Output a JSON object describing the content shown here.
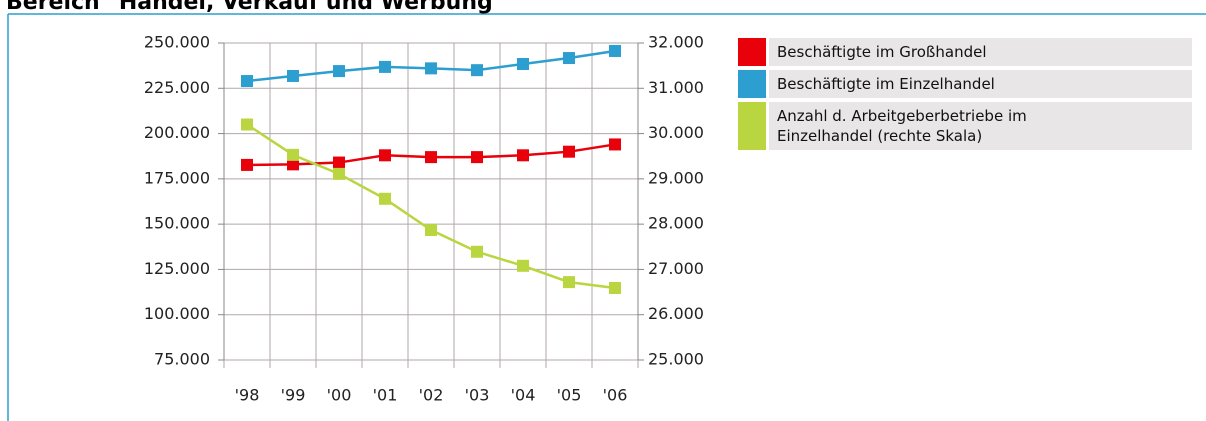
{
  "chart_data": {
    "type": "line",
    "title": "Bereich \"Handel, Verkauf und Werbung\"",
    "categories": [
      "'98",
      "'99",
      "'00",
      "'01",
      "'02",
      "'03",
      "'04",
      "'05",
      "'06"
    ],
    "series": [
      {
        "name": "Beschäftigte im Großhandel",
        "color": "#e8000b",
        "values": [
          182700,
          183000,
          184000,
          188000,
          187000,
          187000,
          188000,
          190000,
          194000
        ]
      },
      {
        "name": "Beschäftigte im Einzelhandel",
        "color": "#2c9fd0",
        "values": [
          229000,
          231800,
          234500,
          236800,
          236000,
          235000,
          238400,
          241700,
          245600
        ]
      },
      {
        "name": "Anzahl d. Arbeitgeberbetriebe im Einzelhandel (rechte Skala)",
        "color": "#b9d641",
        "axis": "y2",
        "values": [
          30200,
          29530,
          29110,
          28560,
          27870,
          27390,
          27080,
          26720,
          26590
        ]
      }
    ],
    "ylim": [
      75000,
      250000
    ],
    "yticks": [
      {
        "value": 75000,
        "label": "75.000"
      },
      {
        "value": 100000,
        "label": "100.000"
      },
      {
        "value": 125000,
        "label": "125.000"
      },
      {
        "value": 150000,
        "label": "150.000"
      },
      {
        "value": 175000,
        "label": "175.000"
      },
      {
        "value": 200000,
        "label": "200.000"
      },
      {
        "value": 225000,
        "label": "225.000"
      },
      {
        "value": 250000,
        "label": "250.000"
      }
    ],
    "y2lim": [
      25000,
      32000
    ],
    "y2ticks": [
      {
        "value": 25000,
        "label": "25.000"
      },
      {
        "value": 26000,
        "label": "26.000"
      },
      {
        "value": 27000,
        "label": "27.000"
      },
      {
        "value": 28000,
        "label": "28.000"
      },
      {
        "value": 29000,
        "label": "29.000"
      },
      {
        "value": 30000,
        "label": "30.000"
      },
      {
        "value": 31000,
        "label": "31.000"
      },
      {
        "value": 32000,
        "label": "32.000"
      }
    ],
    "grid": true
  }
}
